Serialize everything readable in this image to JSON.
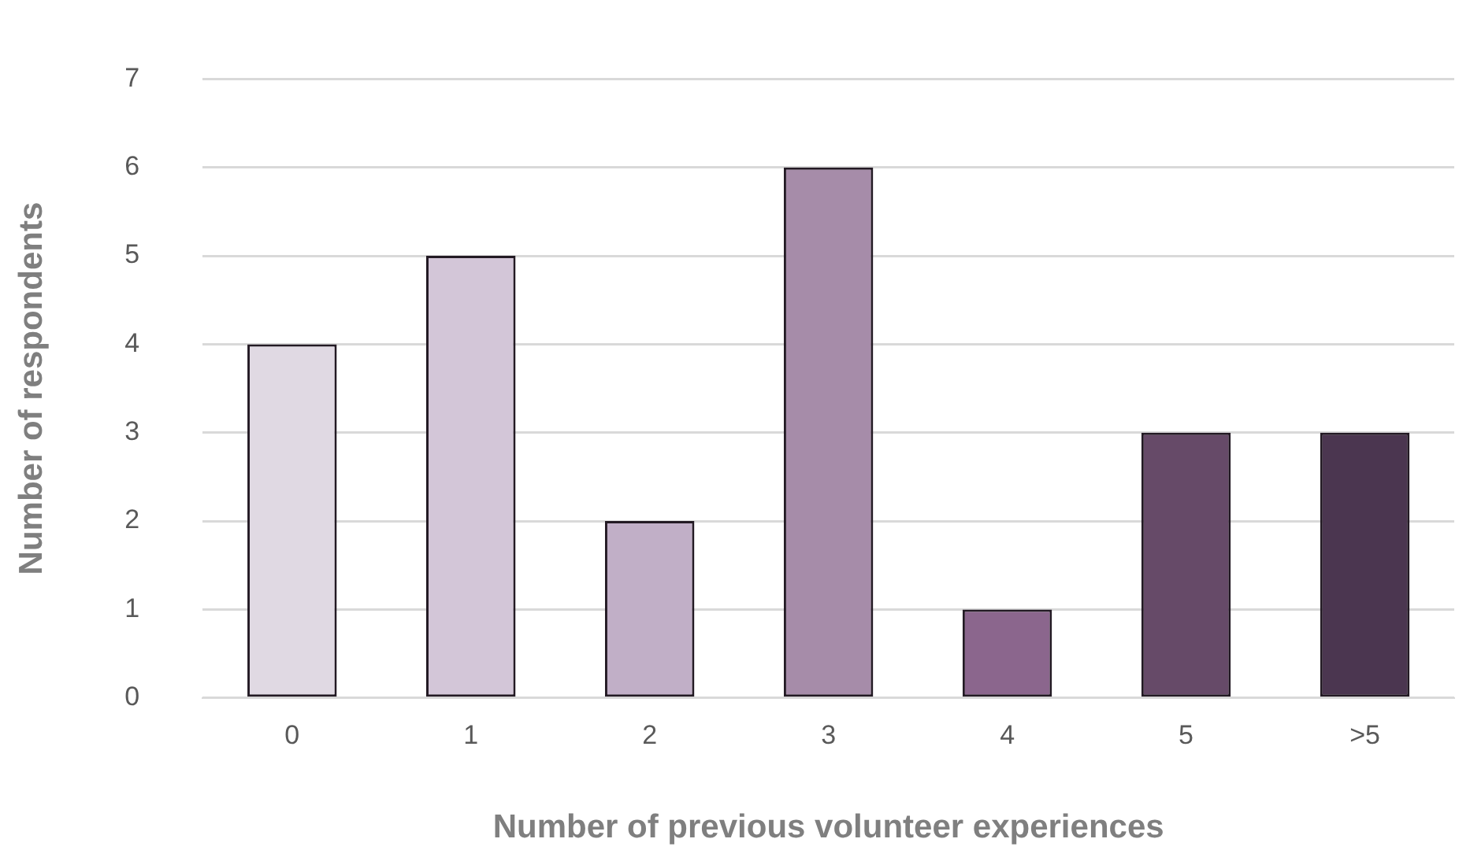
{
  "chart_data": {
    "type": "bar",
    "xlabel": "Number of previous volunteer experiences",
    "ylabel": "Number of respondents",
    "categories": [
      "0",
      "1",
      "2",
      "3",
      "4",
      "5",
      ">5"
    ],
    "values": [
      4,
      5,
      2,
      6,
      1,
      3,
      3
    ],
    "colors": [
      "#e0d9e3",
      "#d3c6d8",
      "#c1afc7",
      "#a68ca9",
      "#8b668d",
      "#664a68",
      "#4b3650"
    ],
    "ylim": [
      0,
      7
    ],
    "yticks": [
      0,
      1,
      2,
      3,
      4,
      5,
      6,
      7
    ],
    "grid": "y",
    "legend": false
  }
}
